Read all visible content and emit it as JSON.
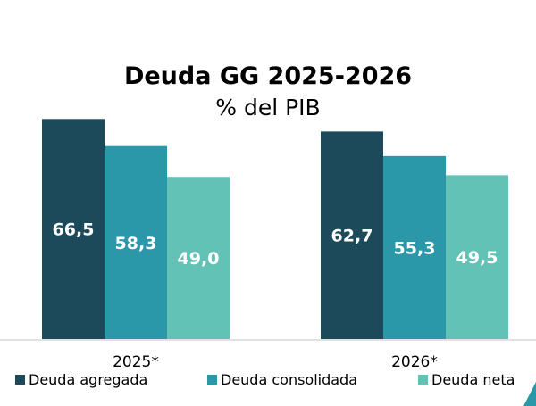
{
  "chart_data": {
    "type": "bar",
    "title": "Deuda GG 2025-2026",
    "subtitle": "% del PIB",
    "categories": [
      "2025*",
      "2026*"
    ],
    "series": [
      {
        "name": "Deuda agregada",
        "values": [
          66.5,
          62.7
        ],
        "labels": [
          "66,5",
          "62,7"
        ],
        "color": "#1d4a5a"
      },
      {
        "name": "Deuda consolidada",
        "values": [
          58.3,
          55.3
        ],
        "labels": [
          "58,3",
          "55,3"
        ],
        "color": "#2a98a8"
      },
      {
        "name": "Deuda neta",
        "values": [
          49.0,
          49.5
        ],
        "labels": [
          "49,0",
          "49,5"
        ],
        "color": "#62c2b5"
      }
    ],
    "ylim": [
      0,
      70
    ],
    "grid": false,
    "legend": "bottom",
    "data_labels": "inside-bar, white bold"
  }
}
